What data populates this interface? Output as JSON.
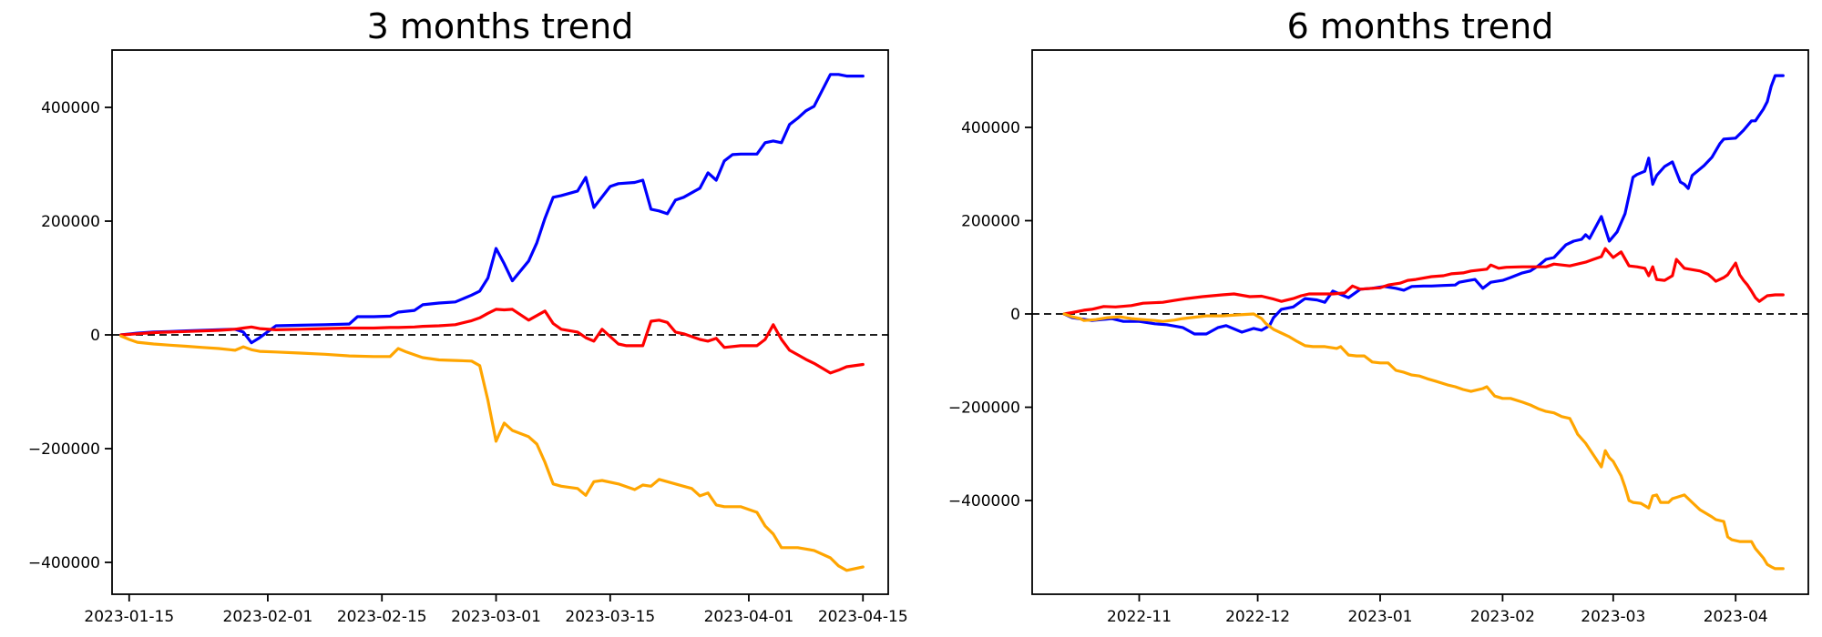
{
  "figure": {
    "background_color": "#ffffff",
    "text_color": "#000000"
  },
  "chart_data": [
    {
      "type": "line",
      "title": "3 months trend",
      "legend": "none",
      "grid": false,
      "zero_line": true,
      "zero_line_style": "black dashed",
      "x_tick_labels": [
        "2023-01-15",
        "2023-02-01",
        "2023-02-15",
        "2023-03-01",
        "2023-03-15",
        "2023-04-01",
        "2023-04-15"
      ],
      "x_tick_days": [
        1,
        18,
        32,
        46,
        60,
        77,
        91
      ],
      "y_tick_labels": [
        "400000",
        "200000",
        "0",
        "−200000",
        "−400000"
      ],
      "y_tick_values": [
        400000,
        200000,
        0,
        -200000,
        -400000
      ],
      "xlim_days": [
        -1.1,
        94.1
      ],
      "ylim": [
        -456000,
        500800
      ],
      "x_day_zero_date": "2023-01-14",
      "series": [
        {
          "name": "blue",
          "color": "#0000ff",
          "x": [
            0,
            2,
            4,
            6,
            8,
            10,
            12,
            14,
            15,
            16,
            17,
            19,
            22,
            25,
            28,
            29,
            31,
            33,
            34,
            36,
            37,
            39,
            41,
            43,
            44,
            45,
            46,
            47,
            48,
            50,
            51,
            52,
            53,
            54,
            56,
            57,
            58,
            60,
            61,
            63,
            64,
            65,
            66,
            67,
            68,
            69,
            71,
            72,
            73,
            74,
            75,
            76,
            78,
            79,
            80,
            81,
            82,
            83,
            84,
            85,
            87,
            88,
            89,
            91
          ],
          "y": [
            0,
            3000,
            5000,
            6000,
            7000,
            8000,
            9000,
            10000,
            5000,
            -14000,
            -5000,
            16000,
            17000,
            18000,
            19000,
            32000,
            32000,
            33000,
            40000,
            43000,
            53000,
            56000,
            58000,
            70000,
            77000,
            100000,
            152000,
            125000,
            95000,
            130000,
            162000,
            205000,
            242000,
            245000,
            253000,
            277000,
            224000,
            261000,
            266000,
            268000,
            272000,
            221000,
            218000,
            213000,
            237000,
            242000,
            258000,
            285000,
            272000,
            306000,
            317000,
            318000,
            318000,
            338000,
            341000,
            338000,
            370000,
            381000,
            394000,
            402000,
            458000,
            458000,
            455000,
            455000
          ]
        },
        {
          "name": "red",
          "color": "#ff0000",
          "x": [
            0,
            2,
            4,
            6,
            8,
            10,
            12,
            14,
            15,
            16,
            17,
            19,
            22,
            25,
            28,
            31,
            33,
            34,
            36,
            37,
            39,
            41,
            43,
            44,
            45,
            46,
            47,
            48,
            50,
            52,
            53,
            54,
            56,
            57,
            58,
            59,
            61,
            62,
            64,
            65,
            66,
            67,
            68,
            69,
            70,
            71,
            72,
            73,
            74,
            76,
            78,
            79,
            80,
            81,
            82,
            83,
            84,
            85,
            87,
            88,
            89,
            91
          ],
          "y": [
            0,
            2000,
            4000,
            5000,
            6000,
            7000,
            8000,
            10000,
            12000,
            14000,
            11000,
            9000,
            10000,
            11000,
            12000,
            12000,
            13000,
            13000,
            14000,
            15000,
            16000,
            18000,
            25000,
            30000,
            38000,
            45000,
            44000,
            45000,
            26000,
            42000,
            20000,
            10000,
            5000,
            -5000,
            -11000,
            10000,
            -16000,
            -19000,
            -19000,
            24000,
            26000,
            22000,
            5000,
            2000,
            -3000,
            -8000,
            -11000,
            -6000,
            -22000,
            -19000,
            -19000,
            -8000,
            18000,
            -8000,
            -27000,
            -35000,
            -43000,
            -50000,
            -67000,
            -62000,
            -56000,
            -52000
          ]
        },
        {
          "name": "orange",
          "color": "#ffa500",
          "x": [
            0,
            1,
            2,
            4,
            6,
            8,
            10,
            12,
            14,
            15,
            16,
            17,
            19,
            22,
            25,
            28,
            31,
            33,
            34,
            35,
            36,
            37,
            39,
            41,
            43,
            44,
            45,
            46,
            47,
            48,
            50,
            51,
            52,
            53,
            54,
            56,
            57,
            58,
            59,
            61,
            63,
            64,
            65,
            66,
            68,
            70,
            71,
            72,
            73,
            74,
            76,
            78,
            79,
            80,
            81,
            83,
            85,
            87,
            88,
            89,
            91
          ],
          "y": [
            -2000,
            -8000,
            -13000,
            -16000,
            -18000,
            -20000,
            -22000,
            -24000,
            -27000,
            -21000,
            -26000,
            -29000,
            -30000,
            -32000,
            -34000,
            -37000,
            -38000,
            -38000,
            -24000,
            -30000,
            -35000,
            -40000,
            -44000,
            -45000,
            -46000,
            -54000,
            -115000,
            -187000,
            -155000,
            -168000,
            -179000,
            -192000,
            -224000,
            -262000,
            -266000,
            -270000,
            -282000,
            -258000,
            -256000,
            -262000,
            -272000,
            -264000,
            -266000,
            -254000,
            -262000,
            -270000,
            -283000,
            -278000,
            -299000,
            -302000,
            -302000,
            -312000,
            -336000,
            -350000,
            -374000,
            -374000,
            -379000,
            -392000,
            -406000,
            -414000,
            -408000
          ]
        }
      ]
    },
    {
      "type": "line",
      "title": "6 months trend",
      "legend": "none",
      "grid": false,
      "zero_line": true,
      "zero_line_style": "black dashed",
      "x_tick_labels": [
        "2022-11",
        "2022-12",
        "2023-01",
        "2023-02",
        "2023-03",
        "2023-04"
      ],
      "x_tick_days": [
        19,
        49,
        80,
        111,
        139,
        170
      ],
      "y_tick_labels": [
        "400000",
        "200000",
        "0",
        "−200000",
        "−400000"
      ],
      "y_tick_values": [
        400000,
        200000,
        0,
        -200000,
        -400000
      ],
      "xlim_days": [
        -8.1,
        188.4
      ],
      "ylim": [
        -600900,
        565800
      ],
      "x_day_zero_date": "2022-10-13",
      "series": [
        {
          "name": "blue",
          "color": "#0000ff",
          "x": [
            0,
            2,
            7,
            12,
            15,
            19,
            23,
            26,
            30,
            33,
            36,
            39,
            41,
            45,
            48,
            50,
            52,
            53,
            55,
            58,
            61,
            64,
            66,
            68,
            70,
            72,
            75,
            78,
            81,
            84,
            86,
            88,
            91,
            93,
            96,
            99,
            100,
            102,
            104,
            106,
            108,
            111,
            113,
            116,
            118,
            120,
            122,
            124,
            127,
            129,
            131,
            132,
            133,
            136,
            138,
            140,
            142,
            143,
            144,
            145,
            147,
            148,
            149,
            150,
            152,
            154,
            156,
            157,
            158,
            159,
            162,
            164,
            166,
            167,
            170,
            172,
            174,
            175,
            177,
            178,
            179,
            180,
            182
          ],
          "y": [
            0,
            -8000,
            -14000,
            -10000,
            -16000,
            -16000,
            -21000,
            -23000,
            -29000,
            -43000,
            -43000,
            -29000,
            -25000,
            -39000,
            -31000,
            -35000,
            -25000,
            -8000,
            10000,
            15000,
            33000,
            30000,
            25000,
            49000,
            42000,
            35000,
            53000,
            55000,
            59000,
            55000,
            51000,
            59000,
            60000,
            60000,
            61000,
            62000,
            68000,
            71000,
            74000,
            55000,
            68000,
            72000,
            78000,
            88000,
            92000,
            103000,
            117000,
            121000,
            148000,
            156000,
            160000,
            170000,
            162000,
            209000,
            156000,
            176000,
            215000,
            254000,
            293000,
            299000,
            306000,
            334000,
            278000,
            297000,
            316000,
            326000,
            283000,
            278000,
            269000,
            297000,
            318000,
            336000,
            365000,
            375000,
            377000,
            394000,
            414000,
            414000,
            439000,
            455000,
            488000,
            511000,
            511000
          ]
        },
        {
          "name": "red",
          "color": "#ff0000",
          "x": [
            0,
            2,
            5,
            7,
            10,
            13,
            17,
            20,
            25,
            28,
            31,
            35,
            40,
            43,
            47,
            50,
            53,
            55,
            58,
            60,
            62,
            66,
            68,
            71,
            73,
            75,
            78,
            80,
            82,
            85,
            87,
            89,
            93,
            96,
            98,
            101,
            103,
            105,
            107,
            108,
            110,
            112,
            116,
            119,
            122,
            124,
            128,
            132,
            134,
            136,
            137,
            139,
            141,
            143,
            145,
            147,
            148,
            149,
            150,
            152,
            154,
            155,
            157,
            159,
            161,
            163,
            164,
            165,
            167,
            168,
            170,
            171,
            172,
            173,
            174,
            175,
            176,
            178,
            180,
            182
          ],
          "y": [
            0,
            3000,
            8000,
            10000,
            16000,
            15000,
            18000,
            23000,
            25000,
            29000,
            33000,
            37000,
            41000,
            43000,
            37000,
            38000,
            32000,
            27000,
            33000,
            39000,
            43000,
            43000,
            43000,
            45000,
            60000,
            53000,
            55000,
            56000,
            62000,
            66000,
            72000,
            74000,
            80000,
            82000,
            86000,
            88000,
            92000,
            94000,
            96000,
            105000,
            98000,
            100000,
            101000,
            101000,
            101000,
            107000,
            103000,
            111000,
            117000,
            123000,
            140000,
            121000,
            133000,
            103000,
            101000,
            98000,
            82000,
            101000,
            74000,
            72000,
            82000,
            117000,
            98000,
            95000,
            92000,
            85000,
            78000,
            70000,
            78000,
            84000,
            109000,
            84000,
            72000,
            62000,
            49000,
            35000,
            27000,
            39000,
            41000,
            41000
          ]
        },
        {
          "name": "orange",
          "color": "#ffa500",
          "x": [
            0,
            2,
            4,
            5,
            8,
            11,
            14,
            17,
            20,
            23,
            25,
            28,
            30,
            33,
            36,
            40,
            44,
            48,
            50,
            51,
            53,
            55,
            57,
            59,
            61,
            63,
            66,
            69,
            70,
            72,
            74,
            76,
            78,
            80,
            82,
            84,
            86,
            88,
            90,
            92,
            94,
            97,
            99,
            101,
            103,
            106,
            107,
            109,
            111,
            113,
            116,
            118,
            120,
            122,
            124,
            126,
            128,
            129,
            130,
            132,
            136,
            137,
            138,
            139,
            141,
            142,
            143,
            144,
            146,
            148,
            149,
            150,
            151,
            153,
            154,
            157,
            159,
            161,
            164,
            165,
            167,
            168,
            169,
            171,
            174,
            175,
            177,
            178,
            179,
            180,
            182
          ],
          "y": [
            0,
            -6000,
            -10000,
            -14000,
            -12000,
            -8000,
            -6000,
            -10000,
            -12000,
            -14000,
            -16000,
            -13000,
            -10000,
            -7000,
            -4000,
            -4000,
            -2000,
            0,
            -10000,
            -20000,
            -33000,
            -41000,
            -49000,
            -59000,
            -68000,
            -70000,
            -70000,
            -74000,
            -70000,
            -88000,
            -90000,
            -90000,
            -103000,
            -105000,
            -105000,
            -121000,
            -125000,
            -131000,
            -133000,
            -139000,
            -144000,
            -152000,
            -156000,
            -162000,
            -166000,
            -160000,
            -156000,
            -176000,
            -181000,
            -181000,
            -189000,
            -195000,
            -203000,
            -209000,
            -212000,
            -220000,
            -224000,
            -240000,
            -258000,
            -277000,
            -328000,
            -293000,
            -308000,
            -316000,
            -347000,
            -371000,
            -400000,
            -404000,
            -406000,
            -416000,
            -390000,
            -388000,
            -404000,
            -404000,
            -396000,
            -388000,
            -404000,
            -420000,
            -435000,
            -441000,
            -445000,
            -478000,
            -484000,
            -488000,
            -488000,
            -503000,
            -523000,
            -537000,
            -542000,
            -546000,
            -546000
          ]
        }
      ]
    }
  ]
}
